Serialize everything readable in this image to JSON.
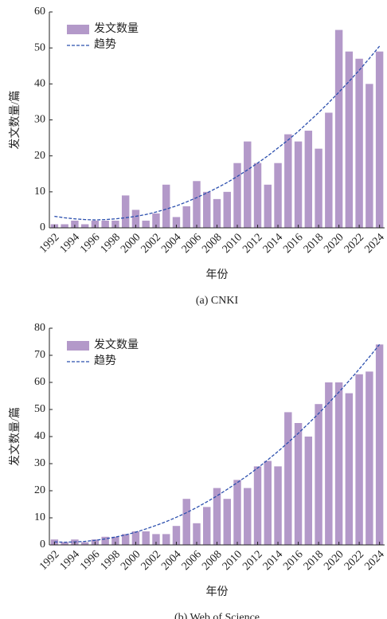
{
  "chart_data": [
    {
      "type": "bar",
      "categories": [
        "1992",
        null,
        "1994",
        null,
        "1996",
        null,
        "1998",
        null,
        "2000",
        null,
        "2002",
        null,
        "2004",
        null,
        "2006",
        null,
        "2008",
        null,
        "2010",
        null,
        "2012",
        null,
        "2014",
        null,
        "2016",
        null,
        "2018",
        null,
        "2020",
        null,
        "2022",
        null,
        "2024"
      ],
      "series": [
        {
          "name": "发文数量",
          "type": "bar",
          "color": "#b399c9",
          "values": [
            1,
            1,
            2,
            1,
            2,
            2,
            2,
            9,
            5,
            2,
            4,
            12,
            3,
            6,
            13,
            10,
            8,
            10,
            18,
            24,
            18,
            12,
            18,
            26,
            24,
            27,
            22,
            32,
            55,
            49,
            47,
            40,
            49
          ]
        },
        {
          "name": "趋势",
          "type": "line",
          "color": "#2b4fae",
          "values": [
            3.2,
            2.8,
            2.5,
            2.3,
            2.2,
            2.3,
            2.5,
            2.8,
            3.2,
            3.7,
            4.4,
            5.2,
            6.1,
            7.2,
            8.4,
            9.7,
            11.1,
            12.6,
            14.3,
            16.1,
            18.0,
            20.0,
            22.2,
            24.4,
            26.8,
            29.4,
            32.0,
            34.8,
            37.7,
            40.7,
            43.8,
            47.1,
            50.5
          ]
        }
      ],
      "xlabel": "年份",
      "ylabel": "发文数量/篇",
      "caption": "(a) CNKI",
      "ylim": [
        0,
        60
      ],
      "yticks": [
        0,
        10,
        20,
        30,
        40,
        50,
        60
      ],
      "legend": "upper left"
    },
    {
      "type": "bar",
      "categories": [
        "1992",
        null,
        "1994",
        null,
        "1996",
        null,
        "1998",
        null,
        "2000",
        null,
        "2002",
        null,
        "2004",
        null,
        "2006",
        null,
        "2008",
        null,
        "2010",
        null,
        "2012",
        null,
        "2014",
        null,
        "2016",
        null,
        "2018",
        null,
        "2020",
        null,
        "2022",
        null,
        "2024"
      ],
      "series": [
        {
          "name": "发文数量",
          "type": "bar",
          "color": "#b399c9",
          "values": [
            2,
            1,
            2,
            1,
            2,
            3,
            3,
            4,
            5,
            5,
            4,
            4,
            7,
            17,
            8,
            14,
            21,
            17,
            24,
            21,
            29,
            31,
            29,
            49,
            45,
            40,
            52,
            60,
            60,
            56,
            63,
            64,
            74
          ]
        },
        {
          "name": "趋势",
          "type": "line",
          "color": "#2b4fae",
          "values": [
            1.1,
            1.0,
            1.1,
            1.3,
            1.7,
            2.2,
            2.9,
            3.7,
            4.7,
            5.9,
            7.2,
            8.6,
            10.2,
            11.9,
            13.8,
            15.9,
            18.1,
            20.5,
            23.0,
            25.6,
            28.4,
            31.4,
            34.5,
            37.8,
            41.2,
            44.8,
            48.5,
            52.4,
            56.4,
            60.6,
            64.9,
            69.4,
            74.0
          ]
        }
      ],
      "xlabel": "年份",
      "ylabel": "发文数量/篇",
      "caption": "(b) Web of Science",
      "ylim": [
        0,
        80
      ],
      "yticks": [
        0,
        10,
        20,
        30,
        40,
        50,
        60,
        70,
        80
      ],
      "legend": "upper left"
    }
  ]
}
